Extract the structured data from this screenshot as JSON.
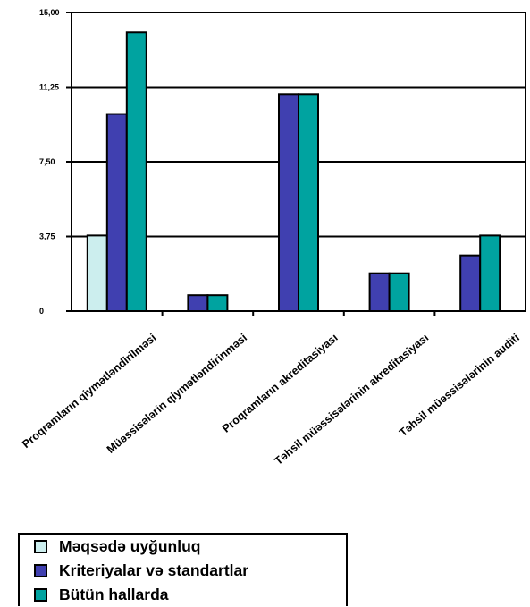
{
  "chart_data": {
    "type": "bar",
    "categories": [
      "Proqramların qiymətləndirilməsi",
      "Müəssisələrin qiymətləndirinməsi",
      "Proqramların akreditasiyası",
      "Təhsil müəssisələrinin akreditasiyası",
      "Təhsil müəssisələrinin auditi"
    ],
    "series": [
      {
        "name": "Məqsədə uyğunluq",
        "color": "#cceeee",
        "values": [
          3.8,
          0,
          0,
          0,
          0
        ]
      },
      {
        "name": "Kriteriyalar və standartlar",
        "color": "#4040b0",
        "values": [
          9.9,
          0.8,
          10.9,
          1.9,
          2.8
        ]
      },
      {
        "name": "Bütün hallarda",
        "color": "#00a3a0",
        "values": [
          14.0,
          0.8,
          10.9,
          1.9,
          3.8
        ]
      }
    ],
    "yticks": [
      "0",
      "3,75",
      "7,50",
      "11,25",
      "15,00"
    ],
    "ylim": [
      0,
      15
    ],
    "grid": true,
    "legend_position": "bottom-left"
  }
}
